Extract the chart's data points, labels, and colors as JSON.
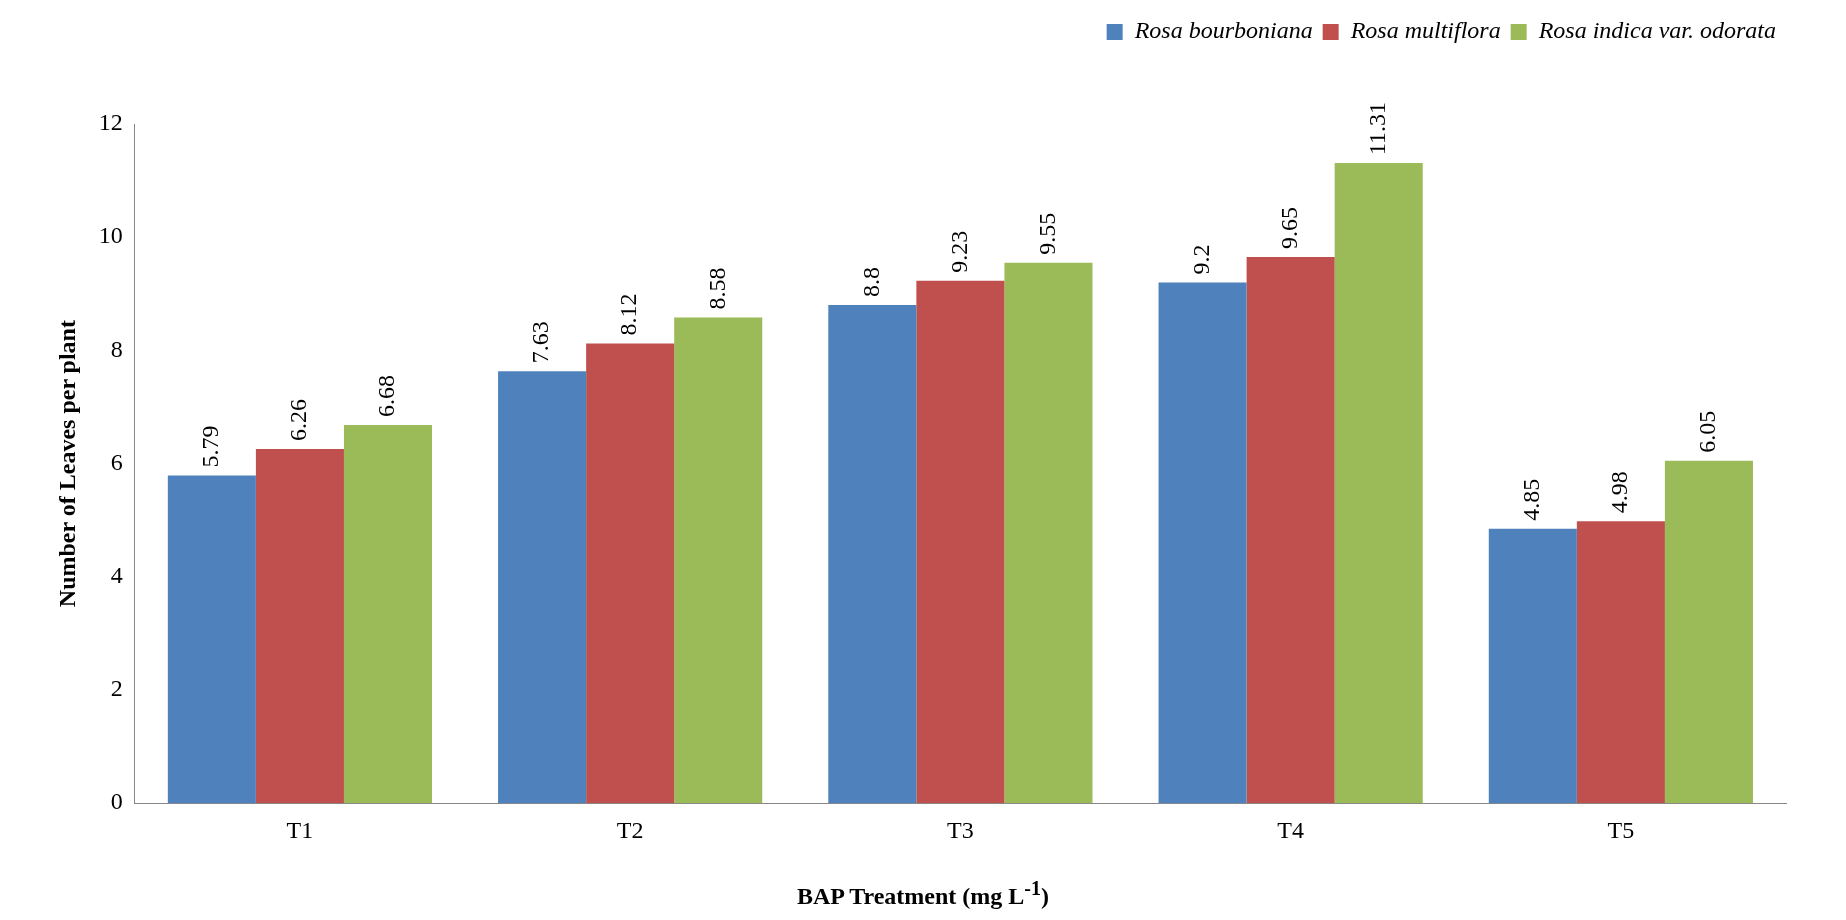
{
  "chart_data": {
    "type": "bar",
    "xlabel": "BAP Treatment (mg L$^{-1}$)",
    "ylabel": "Number of Leaves per plant",
    "categories": [
      "T1",
      "T2",
      "T3",
      "T4",
      "T5"
    ],
    "series": [
      {
        "name": "Rosa bourboniana",
        "color": "#4f81bd",
        "values": [
          5.79,
          7.63,
          8.8,
          9.2,
          4.85
        ]
      },
      {
        "name": "Rosa multiflora",
        "color": "#c0504d",
        "values": [
          6.26,
          8.12,
          9.23,
          9.65,
          4.98
        ]
      },
      {
        "name": "Rosa indica var. odorata",
        "color": "#9bbb59",
        "values": [
          6.68,
          8.58,
          9.55,
          11.31,
          6.05
        ]
      }
    ],
    "ylim": [
      0,
      12
    ],
    "yticks": [
      0,
      2,
      4,
      6,
      8,
      10,
      12
    ],
    "grid": false,
    "legend": "top right",
    "data_labels": true
  }
}
